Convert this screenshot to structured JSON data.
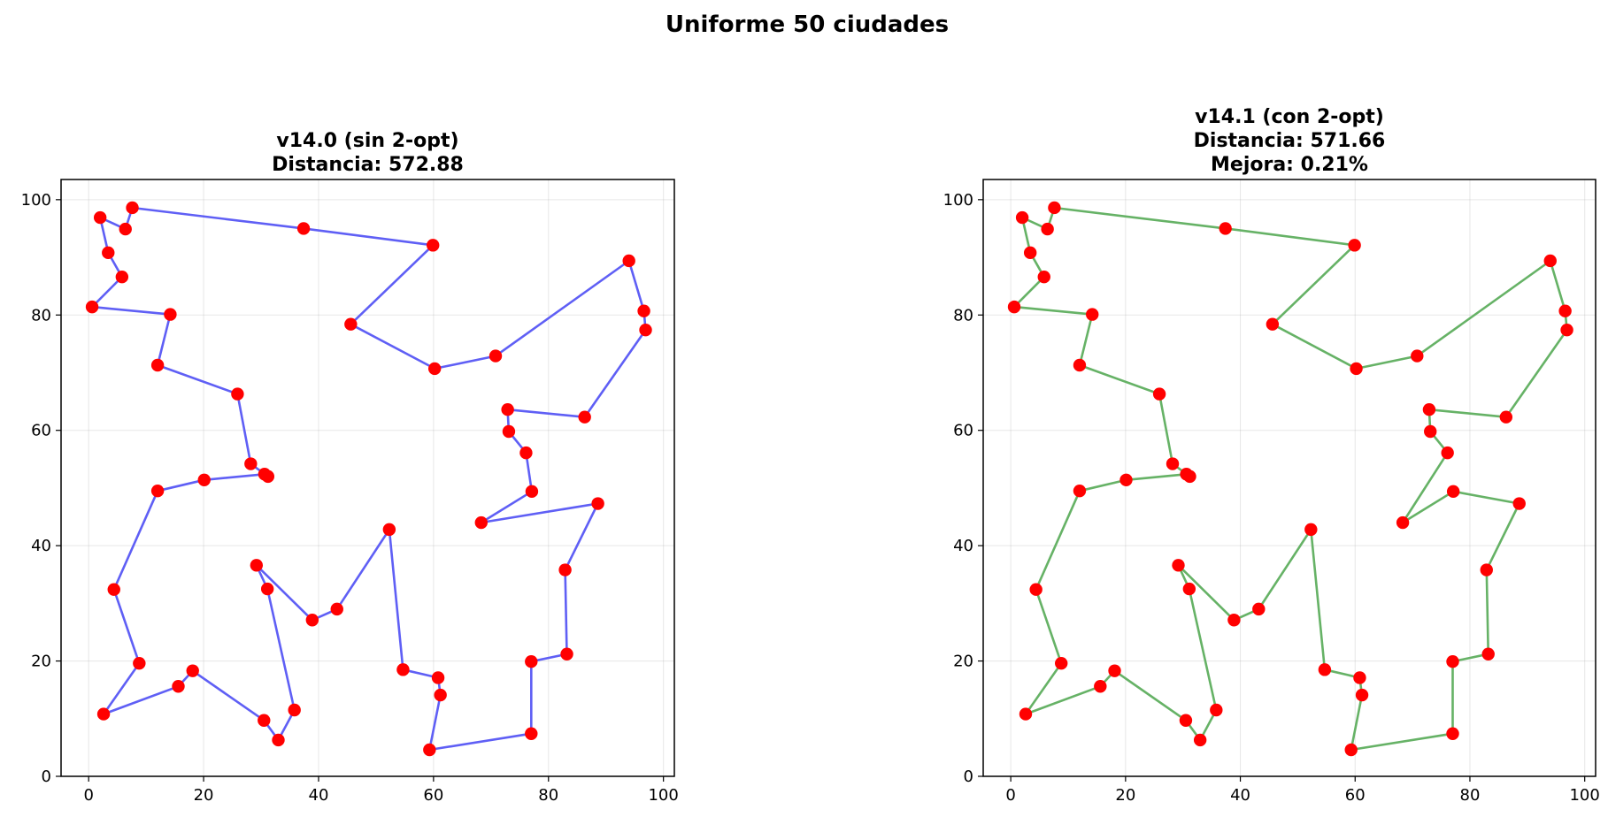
{
  "figure": {
    "suptitle": "Uniforme 50 ciudades"
  },
  "colors": {
    "city": "#ff0000",
    "route_v140": "#5f5ff5",
    "route_v141": "#66b266"
  },
  "chart_data": [
    {
      "type": "line",
      "id": "v140",
      "title_lines": [
        "v14.0 (sin 2-opt)",
        "Distancia: 572.88"
      ],
      "xlim": [
        -4.8,
        101.9
      ],
      "ylim": [
        0,
        103.5
      ],
      "xticks": [
        0,
        20,
        40,
        60,
        80,
        100
      ],
      "yticks": [
        0,
        20,
        40,
        60,
        80,
        100
      ],
      "grid": true,
      "route_color_key": "route_v140",
      "route": [
        [
          7.6,
          98.6
        ],
        [
          37.4,
          95.0
        ],
        [
          59.9,
          92.1
        ],
        [
          45.6,
          78.4
        ],
        [
          60.2,
          70.7
        ],
        [
          70.8,
          72.9
        ],
        [
          94.0,
          89.4
        ],
        [
          96.6,
          80.7
        ],
        [
          96.9,
          77.4
        ],
        [
          86.3,
          62.3
        ],
        [
          72.9,
          63.6
        ],
        [
          73.1,
          59.8
        ],
        [
          76.1,
          56.1
        ],
        [
          77.1,
          49.4
        ],
        [
          68.3,
          44.0
        ],
        [
          88.6,
          47.3
        ],
        [
          82.9,
          35.8
        ],
        [
          83.2,
          21.2
        ],
        [
          77.0,
          19.9
        ],
        [
          77.0,
          7.4
        ],
        [
          59.3,
          4.6
        ],
        [
          61.2,
          14.1
        ],
        [
          60.8,
          17.1
        ],
        [
          54.7,
          18.5
        ],
        [
          52.3,
          42.8
        ],
        [
          43.2,
          29.0
        ],
        [
          38.9,
          27.1
        ],
        [
          29.2,
          36.6
        ],
        [
          31.1,
          32.5
        ],
        [
          35.8,
          11.5
        ],
        [
          33.0,
          6.3
        ],
        [
          30.5,
          9.7
        ],
        [
          18.1,
          18.3
        ],
        [
          15.6,
          15.6
        ],
        [
          2.6,
          10.8
        ],
        [
          8.8,
          19.6
        ],
        [
          4.4,
          32.4
        ],
        [
          12.0,
          49.5
        ],
        [
          20.1,
          51.4
        ],
        [
          30.6,
          52.4
        ],
        [
          31.2,
          52.0
        ],
        [
          28.2,
          54.2
        ],
        [
          25.9,
          66.3
        ],
        [
          12.0,
          71.3
        ],
        [
          14.2,
          80.1
        ],
        [
          0.6,
          81.4
        ],
        [
          5.8,
          86.6
        ],
        [
          3.4,
          90.8
        ],
        [
          2.0,
          96.9
        ],
        [
          6.4,
          94.9
        ],
        [
          7.6,
          98.6
        ]
      ]
    },
    {
      "type": "line",
      "id": "v141",
      "title_lines": [
        "v14.1 (con 2-opt)",
        "Distancia: 571.66",
        "Mejora: 0.21%"
      ],
      "xlim": [
        -4.8,
        101.9
      ],
      "ylim": [
        0,
        103.5
      ],
      "xticks": [
        0,
        20,
        40,
        60,
        80,
        100
      ],
      "yticks": [
        0,
        20,
        40,
        60,
        80,
        100
      ],
      "grid": true,
      "route_color_key": "route_v141",
      "route": [
        [
          7.6,
          98.6
        ],
        [
          37.4,
          95.0
        ],
        [
          59.9,
          92.1
        ],
        [
          45.6,
          78.4
        ],
        [
          60.2,
          70.7
        ],
        [
          70.8,
          72.9
        ],
        [
          94.0,
          89.4
        ],
        [
          96.6,
          80.7
        ],
        [
          96.9,
          77.4
        ],
        [
          86.3,
          62.3
        ],
        [
          72.9,
          63.6
        ],
        [
          73.1,
          59.8
        ],
        [
          76.1,
          56.1
        ],
        [
          68.3,
          44.0
        ],
        [
          77.1,
          49.4
        ],
        [
          88.6,
          47.3
        ],
        [
          82.9,
          35.8
        ],
        [
          83.2,
          21.2
        ],
        [
          77.0,
          19.9
        ],
        [
          77.0,
          7.4
        ],
        [
          59.3,
          4.6
        ],
        [
          61.2,
          14.1
        ],
        [
          60.8,
          17.1
        ],
        [
          54.7,
          18.5
        ],
        [
          52.3,
          42.8
        ],
        [
          43.2,
          29.0
        ],
        [
          38.9,
          27.1
        ],
        [
          29.2,
          36.6
        ],
        [
          31.1,
          32.5
        ],
        [
          35.8,
          11.5
        ],
        [
          33.0,
          6.3
        ],
        [
          30.5,
          9.7
        ],
        [
          18.1,
          18.3
        ],
        [
          15.6,
          15.6
        ],
        [
          2.6,
          10.8
        ],
        [
          8.8,
          19.6
        ],
        [
          4.4,
          32.4
        ],
        [
          12.0,
          49.5
        ],
        [
          20.1,
          51.4
        ],
        [
          30.6,
          52.4
        ],
        [
          31.2,
          52.0
        ],
        [
          28.2,
          54.2
        ],
        [
          25.9,
          66.3
        ],
        [
          12.0,
          71.3
        ],
        [
          14.2,
          80.1
        ],
        [
          0.6,
          81.4
        ],
        [
          5.8,
          86.6
        ],
        [
          3.4,
          90.8
        ],
        [
          2.0,
          96.9
        ],
        [
          6.4,
          94.9
        ],
        [
          7.6,
          98.6
        ]
      ]
    }
  ]
}
